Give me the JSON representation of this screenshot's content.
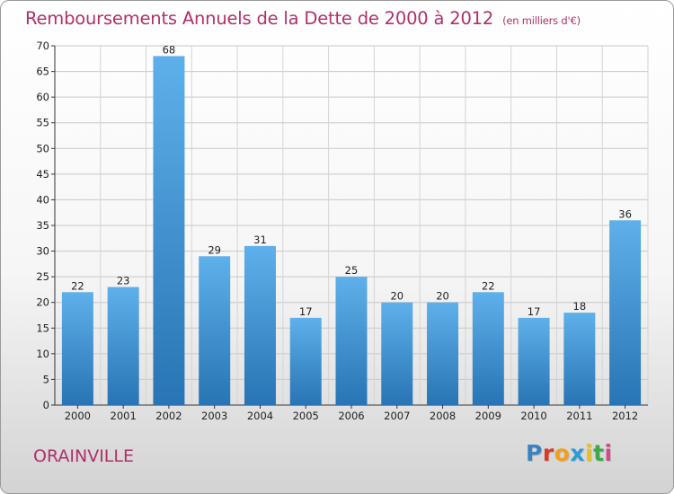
{
  "chart_data": {
    "type": "bar",
    "title": "Remboursements Annuels de la Dette de 2000 à 2012",
    "unit_label": "(en milliers d'€)",
    "categories": [
      "2000",
      "2001",
      "2002",
      "2003",
      "2004",
      "2005",
      "2006",
      "2007",
      "2008",
      "2009",
      "2010",
      "2011",
      "2012"
    ],
    "values": [
      22,
      23,
      68,
      29,
      31,
      17,
      25,
      20,
      20,
      22,
      17,
      18,
      36
    ],
    "ylim": [
      0,
      70
    ],
    "yticks": [
      0,
      5,
      10,
      15,
      20,
      25,
      30,
      35,
      40,
      45,
      50,
      55,
      60,
      65,
      70
    ],
    "grid": true,
    "xlabel": "",
    "ylabel": ""
  },
  "commune": "ORAINVILLE",
  "logo": {
    "p": "P",
    "r": "r",
    "o": "o",
    "x": "x",
    "i1": "i",
    "t": "t",
    "i2": "i"
  },
  "colors": {
    "title": "#b0306a",
    "bar_top": "#5eb0ea",
    "bar_bottom": "#2874b4"
  }
}
